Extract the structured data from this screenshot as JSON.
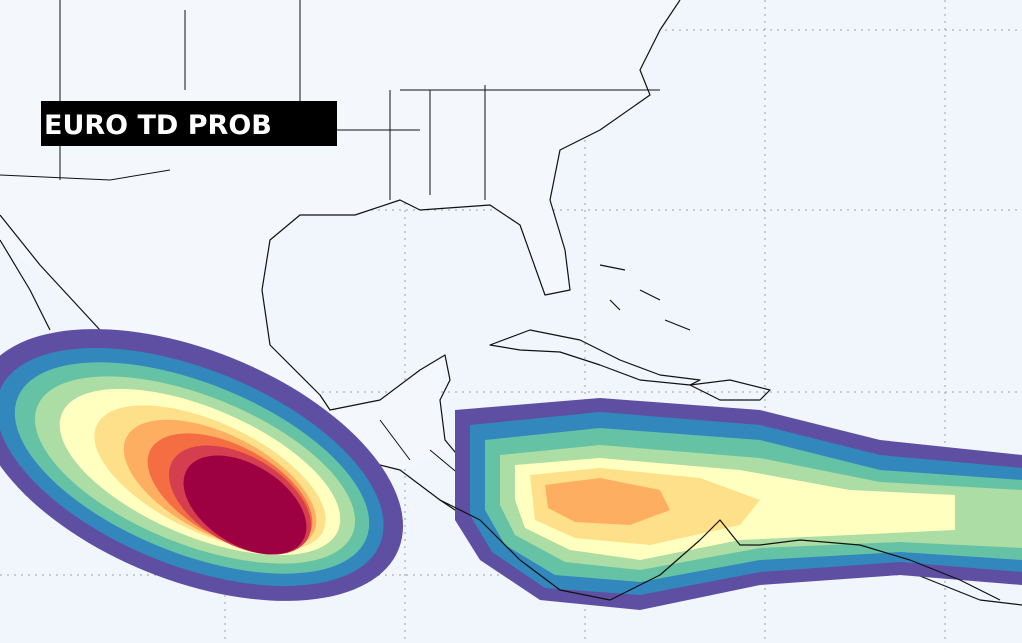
{
  "title": "EURO TD PROB"
}
